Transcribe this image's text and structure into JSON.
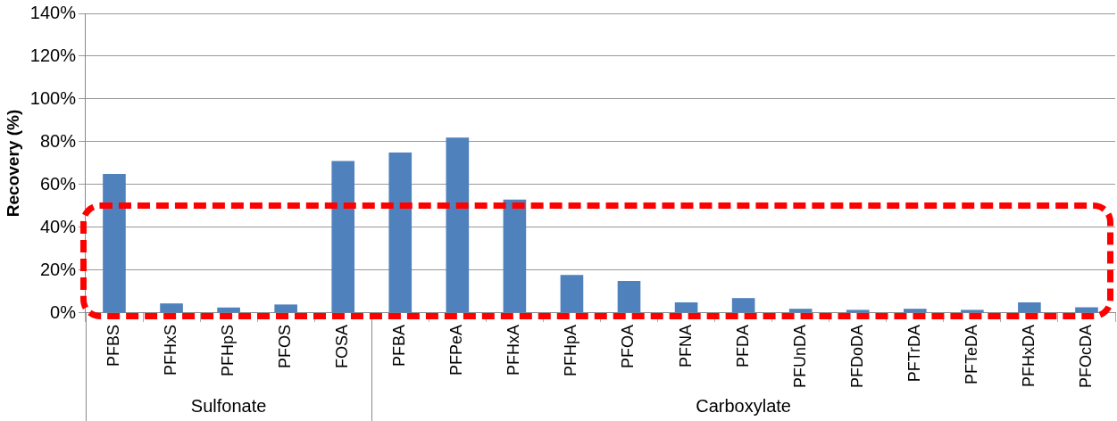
{
  "chart_data": {
    "type": "bar",
    "ylabel": "Recovery (%)",
    "categories": [
      "PFBS",
      "PFHxS",
      "PFHpS",
      "PFOS",
      "FOSA",
      "PFBA",
      "PFPeA",
      "PFHxA",
      "PFHpA",
      "PFOA",
      "PFNA",
      "PFDA",
      "PFUnDA",
      "PFDoDA",
      "PFTrDA",
      "PFTeDA",
      "PFHxDA",
      "PFOcDA"
    ],
    "values": [
      65,
      4.5,
      2.6,
      4,
      71,
      75,
      82,
      53,
      17.8,
      15,
      5,
      7,
      2,
      1.5,
      2,
      1.5,
      5,
      2.7
    ],
    "color": "#4f81bd",
    "ylim": [
      0,
      140
    ],
    "yticks": [
      {
        "value": 0,
        "label": "0%"
      },
      {
        "value": 20,
        "label": "20%"
      },
      {
        "value": 40,
        "label": "40%"
      },
      {
        "value": 60,
        "label": "60%"
      },
      {
        "value": 80,
        "label": "80%"
      },
      {
        "value": 100,
        "label": "100%"
      },
      {
        "value": 120,
        "label": "120%"
      },
      {
        "value": 140,
        "label": "140%"
      }
    ],
    "grid": "y",
    "legend": false,
    "annotations": [
      "Sulfonate",
      "Carboxylate"
    ]
  }
}
